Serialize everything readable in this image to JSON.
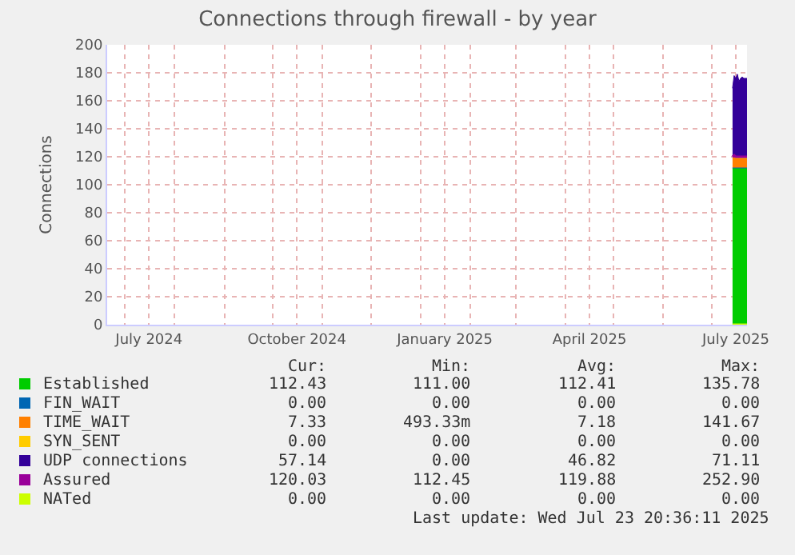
{
  "chart_data": {
    "type": "area",
    "title": "Connections through firewall - by year",
    "ylabel": "Connections",
    "stacked": true,
    "x": [
      "2025-07-14",
      "2025-07-15",
      "2025-07-16",
      "2025-07-17",
      "2025-07-18",
      "2025-07-19",
      "2025-07-20",
      "2025-07-21",
      "2025-07-22",
      "2025-07-23"
    ],
    "series": [
      {
        "name": "Established",
        "color": "#00cc00",
        "values": [
          112,
          112,
          112,
          112,
          112,
          112,
          112,
          112,
          112,
          112
        ]
      },
      {
        "name": "FIN_WAIT",
        "color": "#0066b3",
        "values": [
          null,
          null,
          null,
          null,
          null,
          null,
          null,
          null,
          null,
          null
        ]
      },
      {
        "name": "TIME_WAIT",
        "color": "#ff8000",
        "values": [
          7,
          8,
          7,
          7,
          7,
          7,
          7,
          7,
          7,
          7
        ]
      },
      {
        "name": "SYN_SENT",
        "color": "#ffcc00",
        "values": [
          null,
          null,
          null,
          null,
          null,
          null,
          null,
          null,
          null,
          null
        ]
      },
      {
        "name": "UDP connections",
        "color": "#330099",
        "values": [
          50,
          58,
          57,
          60,
          55,
          57,
          58,
          57,
          57,
          57
        ]
      },
      {
        "name": "Assured",
        "color": "#990099",
        "type": "line",
        "values": [
          120,
          121,
          120,
          120,
          120,
          120,
          120,
          120,
          120,
          120
        ]
      },
      {
        "name": "NATed",
        "color": "#ccff00",
        "type": "line",
        "values": [
          0,
          0,
          0,
          0,
          0,
          0,
          0,
          0,
          0,
          0
        ]
      }
    ],
    "xlim": [
      "2024-06-20",
      "2025-07-23"
    ],
    "xticks": [
      {
        "value": "2024-07-01",
        "label": null
      },
      {
        "value": "2024-07-16",
        "label": "July 2024"
      },
      {
        "value": "2024-08-01",
        "label": null
      },
      {
        "value": "2024-09-01",
        "label": null
      },
      {
        "value": "2024-10-01",
        "label": null
      },
      {
        "value": "2024-10-16",
        "label": "October 2024"
      },
      {
        "value": "2024-11-01",
        "label": null
      },
      {
        "value": "2024-12-01",
        "label": null
      },
      {
        "value": "2025-01-01",
        "label": null
      },
      {
        "value": "2025-01-16",
        "label": "January 2025"
      },
      {
        "value": "2025-02-01",
        "label": null
      },
      {
        "value": "2025-03-01",
        "label": null
      },
      {
        "value": "2025-04-01",
        "label": null
      },
      {
        "value": "2025-04-16",
        "label": "April 2025"
      },
      {
        "value": "2025-05-01",
        "label": null
      },
      {
        "value": "2025-06-01",
        "label": null
      },
      {
        "value": "2025-07-01",
        "label": null
      },
      {
        "value": "2025-07-16",
        "label": "July 2025"
      }
    ],
    "ylim": [
      0,
      200
    ],
    "yticks": [
      0,
      20,
      40,
      60,
      80,
      100,
      120,
      140,
      160,
      180,
      200
    ],
    "grid": true,
    "legend": "bottom left",
    "annotations": [
      "Cur:",
      "Min:",
      "Avg:",
      "Max:",
      "112.43",
      "111.00",
      "112.41",
      "135.78",
      "0.00",
      "0.00",
      "0.00",
      "0.00",
      "7.33",
      "493.33m",
      "7.18",
      "141.67",
      "0.00",
      "0.00",
      "0.00",
      "0.00",
      "57.14",
      "0.00",
      "46.82",
      "71.11",
      "120.03",
      "112.45",
      "119.88",
      "252.90",
      "0.00",
      "0.00",
      "0.00",
      "0.00",
      "Last update: Wed Jul 23 20:36:11 2025"
    ]
  }
}
